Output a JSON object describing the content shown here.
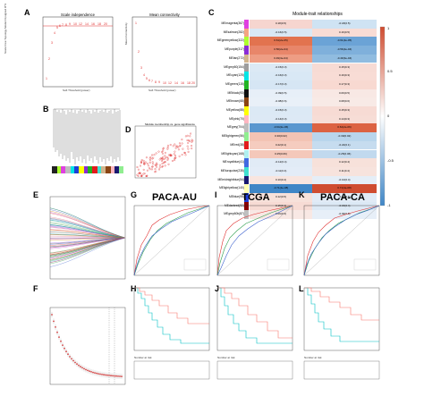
{
  "labels": {
    "A": "A",
    "B": "B",
    "C": "C",
    "D": "D",
    "E": "E",
    "F": "F",
    "G": "G",
    "H": "H",
    "I": "I",
    "J": "J",
    "K": "K",
    "L": "L"
  },
  "panelA": {
    "left_title": "Scale independence",
    "right_title": "Mean connectivity",
    "left_xlabel": "Soft Threshold (power)",
    "right_xlabel": "Soft Threshold (power)",
    "left_ylabel": "Scale Free Topology Model Fit,signed R^2",
    "right_ylabel": "Mean Connectivity"
  },
  "panelC": {
    "title": "Module-trait relationships",
    "colorbar_ticks": [
      "1",
      "0.5",
      "0",
      "-0.5",
      "-1"
    ],
    "trait_headers": [
      "",
      ""
    ],
    "modules": [
      {
        "name": "MEmagenta(367)",
        "color": "#e040e0",
        "c1": "0.18(0.5)",
        "c2": "-0.18(0.5)",
        "f1": "#f6d5cf",
        "f2": "#cfe3f3"
      },
      {
        "name": "MEsalmon(282)",
        "color": "#f4a582",
        "c1": "-0.16(0.5)",
        "c2": "0.16(0.5)",
        "f1": "#d9e8f5",
        "f2": "#f8dcd5"
      },
      {
        "name": "MEgreenyellow(322)",
        "color": "#adff2f",
        "c1": "0.61(2e-05)",
        "c2": "-0.61(2e-05)",
        "f1": "#e2734f",
        "f2": "#6ba3d6"
      },
      {
        "name": "MEpurple(317)",
        "color": "#8b2bd6",
        "c1": "0.56(2e-04)",
        "c2": "-0.56(2e-04)",
        "f1": "#e8866a",
        "f2": "#7fb0db"
      },
      {
        "name": "MEtan(272)",
        "color": "#d2b48c",
        "c1": "0.49(3e-04)",
        "c2": "-0.49(3e-04)",
        "f1": "#ee9d84",
        "f2": "#90bce0"
      },
      {
        "name": "MEgrey60(154)",
        "color": "#9e9e9e",
        "c1": "-0.15(0.3)",
        "c2": "0.15(0.3)",
        "f1": "#dce9f5",
        "f2": "#f7dbd4"
      },
      {
        "name": "MEcyan(125)",
        "color": "#00e5e5",
        "c1": "-0.16(0.3)",
        "c2": "0.16(0.3)",
        "f1": "#d9e8f5",
        "f2": "#f8dcd5"
      },
      {
        "name": "MEgreen(115)",
        "color": "#22b422",
        "c1": "-0.17(0.3)",
        "c2": "0.17(0.3)",
        "f1": "#d6e6f4",
        "f2": "#f8d9d1"
      },
      {
        "name": "MEblack(93)",
        "color": "#111111",
        "c1": "-0.09(0.5)",
        "c2": "0.09(0.5)",
        "f1": "#e7eff8",
        "f2": "#f8e8e4"
      },
      {
        "name": "MEbrown(68)",
        "color": "#8b4513",
        "c1": "-0.08(0.6)",
        "c2": "0.08(0.6)",
        "f1": "#e9f0f8",
        "f2": "#f8eae6"
      },
      {
        "name": "MEyellow(88)",
        "color": "#ffff00",
        "c1": "-0.15(0.3)",
        "c2": "0.15(0.3)",
        "f1": "#dce9f5",
        "f2": "#f7dbd4"
      },
      {
        "name": "MEpink(70)",
        "color": "#ffb6c1",
        "c1": "-0.14(0.3)",
        "c2": "0.14(0.3)",
        "f1": "#dde9f5",
        "f2": "#f7ddd6"
      },
      {
        "name": "MEgrey(704)",
        "color": "#bebebe",
        "c1": "-0.64(2e-06)",
        "c2": "0.64(2e-06)",
        "f1": "#5a97cf",
        "f2": "#dc6242"
      },
      {
        "name": "MElightgreen(56)",
        "color": "#90ee90",
        "c1": "0.30(0.02)",
        "c2": "-0.30(0.02)",
        "f1": "#f3c3b4",
        "f2": "#b9d5ec"
      },
      {
        "name": "MEred(38)",
        "color": "#e31a1c",
        "c1": "0.22(0.1)",
        "c2": "-0.22(0.1)",
        "f1": "#f5ccbf",
        "f2": "#c6dcef"
      },
      {
        "name": "MElightcyan(168)",
        "color": "#b0f0f0",
        "c1": "0.25(0.06)",
        "c2": "-0.25(0.06)",
        "f1": "#f4c8ba",
        "f2": "#c1d9ee"
      },
      {
        "name": "MEroyalblue(41)",
        "color": "#4169e1",
        "c1": "-0.12(0.4)",
        "c2": "0.12(0.4)",
        "f1": "#e1ebf6",
        "f2": "#f7e1da"
      },
      {
        "name": "MEturquoise(235)",
        "color": "#40e0d0",
        "c1": "-0.11(0.4)",
        "c2": "0.11(0.4)",
        "f1": "#e3ecf7",
        "f2": "#f7e3dd"
      },
      {
        "name": "MEmidnightblue(54)",
        "color": "#191970",
        "c1": "0.10(0.4)",
        "c2": "-0.10(0.4)",
        "f1": "#f8e5df",
        "f2": "#e5eef7"
      },
      {
        "name": "MElightyellow(140)",
        "color": "#ffffb0",
        "c1": "-0.71(4e-08)",
        "c2": "0.71(4e-08)",
        "f1": "#3f86c6",
        "f2": "#cf4c30"
      },
      {
        "name": "MEblue(95)",
        "color": "#1f3fd6",
        "c1": "0.12(0.5)",
        "c2": "-0.12(0.5)",
        "f1": "#f7e1da",
        "f2": "#e1ebf6"
      },
      {
        "name": "MEdarkred(92)",
        "color": "#8b0000",
        "c1": "0.15(0.4)",
        "c2": "-0.15(0.4)",
        "f1": "#f7dbd4",
        "f2": "#dce9f5"
      },
      {
        "name": "MEgrey60b(87)",
        "color": "#c0c0c0",
        "c1": "0.09(0.5)",
        "c2": "-0.09(0.5)",
        "f1": "#f8e8e4",
        "f2": "#e7eff8"
      }
    ]
  },
  "panelD": {
    "title": "Module membership vs. gene significance"
  },
  "cohorts": {
    "G": "PACA-AU",
    "I": "TCGA",
    "K": "PACA-CA"
  },
  "km": {
    "risk_table_label": "Number at risk",
    "ylabel": "Overall survival",
    "xlabel": "Time (days)"
  },
  "roc": {
    "xlabel": "1 - Specificity",
    "ylabel": "Sensitivity"
  },
  "colors": {
    "heat_pos": "#cf4c30",
    "heat_neg": "#3f86c6",
    "km_high": "#f8766d",
    "km_low": "#00bfc4"
  }
}
